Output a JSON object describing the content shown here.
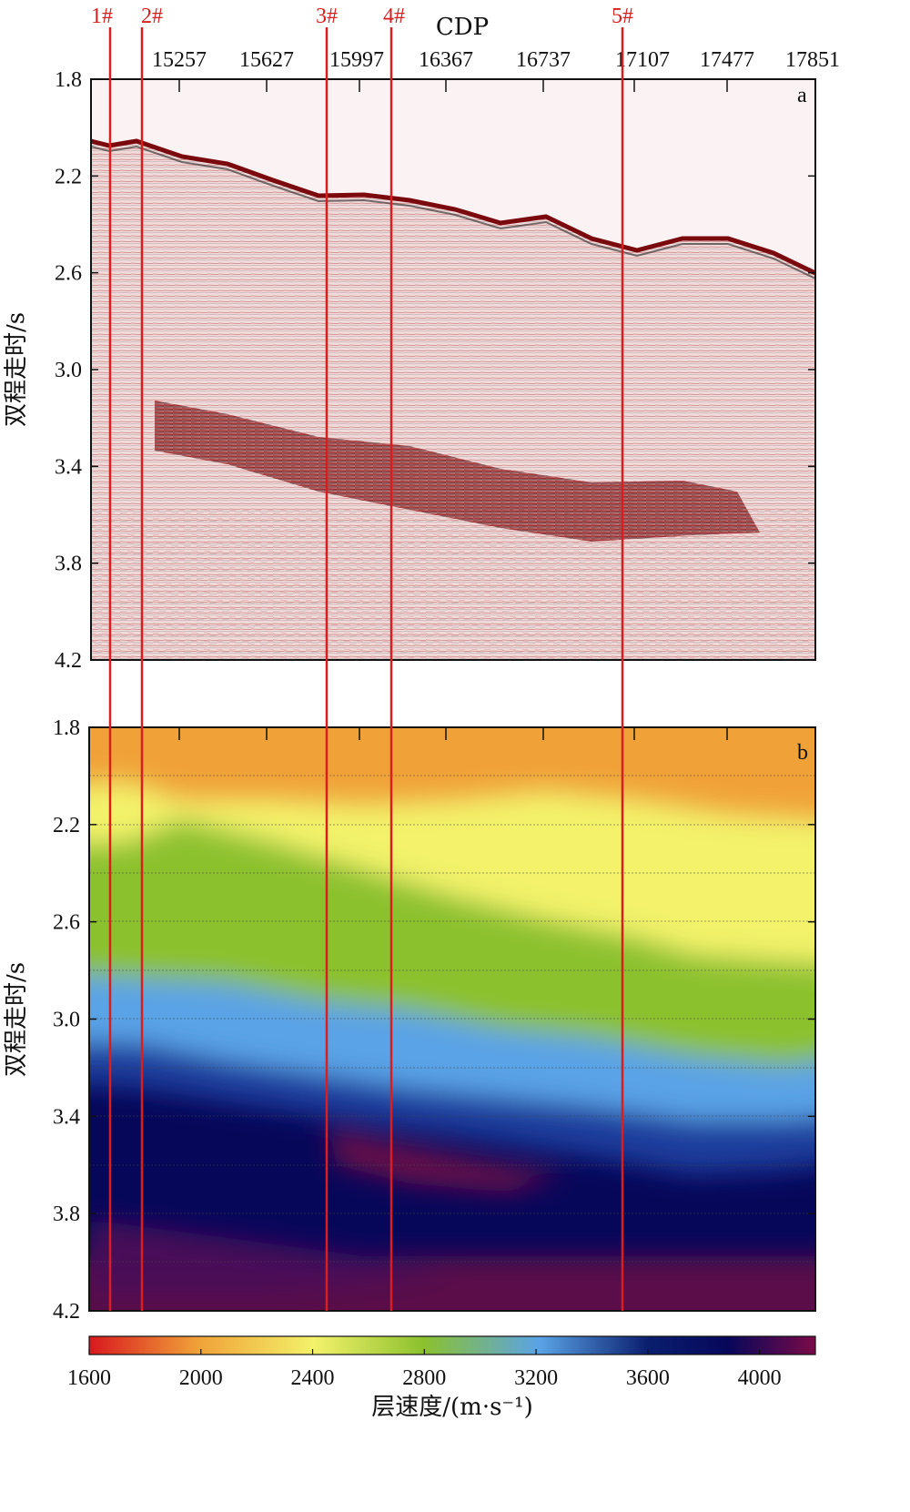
{
  "chart_data": [
    {
      "type": "seismic_section",
      "panel_label": "a",
      "xlabel": "CDP",
      "ylabel": "双程走时/s",
      "cdp_ticks": [
        "15257",
        "15627",
        "15997",
        "16367",
        "16737",
        "17107",
        "17477",
        "17851"
      ],
      "yticks": [
        "1.8",
        "2.2",
        "2.6",
        "3.0",
        "3.4",
        "3.8",
        "4.2"
      ],
      "ylim": [
        1.8,
        4.2
      ],
      "wells": [
        "1#",
        "2#",
        "3#",
        "4#",
        "5#"
      ]
    },
    {
      "type": "heatmap",
      "panel_label": "b",
      "ylabel": "双程走时/s",
      "yticks": [
        "1.8",
        "2.2",
        "2.6",
        "3.0",
        "3.4",
        "3.8",
        "4.2"
      ],
      "ylim": [
        1.8,
        4.2
      ],
      "colorbar": {
        "label": "层速度/(m·s⁻¹)",
        "ticks": [
          "1600",
          "2000",
          "2400",
          "2800",
          "3200",
          "3600",
          "4000"
        ],
        "range": [
          1600,
          4200
        ],
        "colors": [
          "#d8181e",
          "#f0a238",
          "#f3f26a",
          "#8cc12e",
          "#5aa3e6",
          "#0a1e6e",
          "#07075a",
          "#7a0a48"
        ]
      }
    }
  ]
}
